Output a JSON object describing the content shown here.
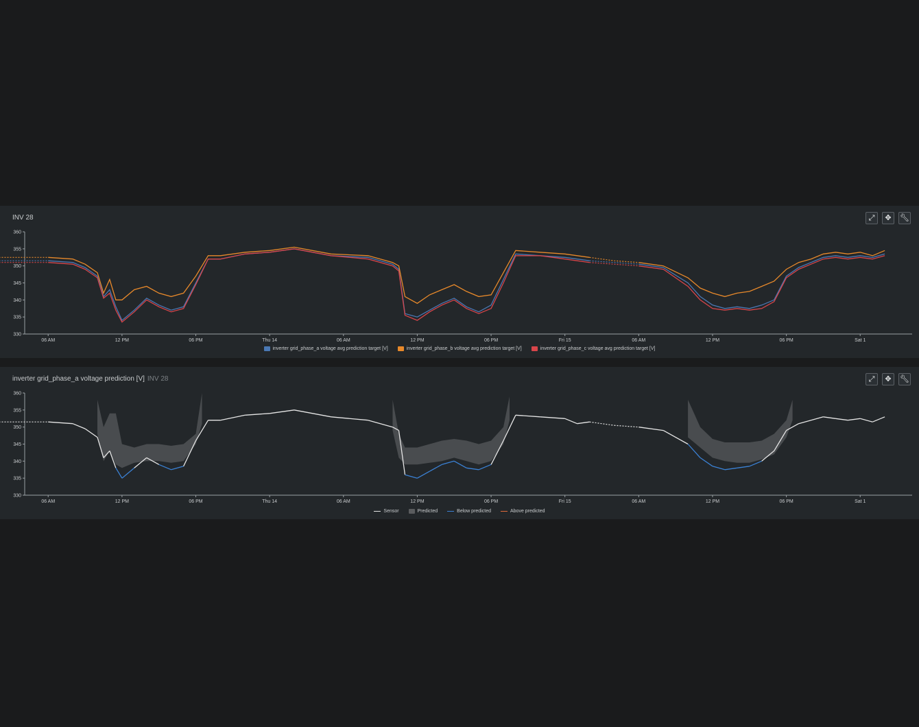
{
  "panels": [
    {
      "title": "INV 28",
      "subtitle": "",
      "tools": [
        "collapse-icon",
        "move-icon",
        "wrench-icon"
      ],
      "legend": [
        {
          "label": "inverter grid_phase_a voltage avg prediction target [V]",
          "color": "#4a78b4"
        },
        {
          "label": "inverter grid_phase_b voltage avg prediction target [V]",
          "color": "#e8892a"
        },
        {
          "label": "inverter grid_phase_c voltage avg prediction target [V]",
          "color": "#d8454a"
        }
      ]
    },
    {
      "title": "inverter grid_phase_a voltage prediction [V]",
      "subtitle": "INV 28",
      "tools": [
        "collapse-icon",
        "move-icon",
        "wrench-icon"
      ],
      "legend": [
        {
          "label": "Sensor",
          "color": "#e6e6e6",
          "kind": "line"
        },
        {
          "label": "Predicted",
          "color": "#5a5c5e",
          "kind": "area"
        },
        {
          "label": "Below predicted",
          "color": "#3b82d6",
          "kind": "line"
        },
        {
          "label": "Above predicted",
          "color": "#e06a3a",
          "kind": "line"
        }
      ]
    }
  ],
  "chart_data": [
    {
      "type": "line",
      "x_ticks": [
        "06 AM",
        "12 PM",
        "06 PM",
        "Thu 14",
        "06 AM",
        "12 PM",
        "06 PM",
        "Fri 15",
        "06 AM",
        "12 PM",
        "06 PM",
        "Sat 1"
      ],
      "x_range_hours": [
        0,
        72
      ],
      "ylim": [
        330,
        360
      ],
      "y_ticks": [
        330,
        335,
        340,
        345,
        350,
        355,
        360
      ],
      "grid": false,
      "legend_position": "bottom",
      "x_hours": [
        0,
        4,
        6,
        7,
        8,
        8.5,
        9,
        9.5,
        10,
        11,
        12,
        13,
        14,
        15,
        16,
        17,
        18,
        20,
        22,
        24,
        27,
        30,
        32,
        32.5,
        33,
        34,
        35,
        36,
        37,
        38,
        39,
        40,
        41,
        42,
        44,
        46,
        47,
        48,
        50,
        52,
        54,
        56,
        57,
        58,
        59,
        60,
        61,
        62,
        63,
        64,
        65,
        66,
        67,
        68,
        69,
        70,
        71,
        72
      ],
      "series": [
        {
          "name": "inverter grid_phase_a voltage avg prediction target [V]",
          "color": "#4a78b4",
          "values": [
            351.5,
            351.5,
            351,
            349.5,
            347,
            341,
            343,
            338,
            334,
            337,
            340.5,
            338.5,
            337,
            338,
            345,
            352,
            352,
            353.5,
            354,
            355,
            353,
            352.5,
            350.5,
            349,
            336,
            335,
            337,
            339,
            340.5,
            338,
            336.5,
            338.5,
            346,
            353.5,
            353,
            352.5,
            352,
            351.5,
            351,
            350.5,
            349.5,
            345,
            341,
            338.5,
            337.5,
            338,
            337.5,
            338.5,
            340,
            347,
            349.5,
            351,
            352.5,
            353,
            352.5,
            353,
            352.5,
            353.5
          ]
        },
        {
          "name": "inverter grid_phase_b voltage avg prediction target [V]",
          "color": "#e8892a",
          "values": [
            352.5,
            352.5,
            352,
            350.5,
            348,
            342,
            346,
            340,
            340,
            343,
            344,
            342,
            341,
            342,
            347,
            353,
            353,
            354,
            354.5,
            355.5,
            353.5,
            353,
            351,
            350,
            341,
            339,
            341.5,
            343,
            344.5,
            342.5,
            341,
            341.5,
            348,
            354.5,
            354,
            353.5,
            353,
            352.5,
            351.5,
            351,
            350,
            346.5,
            343.5,
            342,
            341,
            342,
            342.5,
            344,
            345.5,
            349,
            351,
            352,
            353.5,
            354,
            353.5,
            354,
            353,
            354.5
          ]
        },
        {
          "name": "inverter grid_phase_c voltage avg prediction target [V]",
          "color": "#d8454a",
          "values": [
            351,
            351,
            350.5,
            349,
            346.5,
            340.5,
            342,
            337,
            333.5,
            336.5,
            340,
            338,
            336.5,
            337.5,
            344.5,
            352,
            352,
            353.5,
            354,
            355,
            353,
            352,
            350,
            348.5,
            335.5,
            334,
            336.5,
            338.5,
            340,
            337.5,
            336,
            337.5,
            345,
            353,
            353,
            352,
            351.5,
            351,
            350.5,
            350,
            349,
            344,
            340,
            337.5,
            337,
            337.5,
            337,
            337.5,
            339.5,
            346.5,
            349,
            350.5,
            352,
            352.5,
            352,
            352.5,
            352,
            353
          ]
        }
      ]
    },
    {
      "type": "line",
      "x_ticks": [
        "06 AM",
        "12 PM",
        "06 PM",
        "Thu 14",
        "06 AM",
        "12 PM",
        "06 PM",
        "Fri 15",
        "06 AM",
        "12 PM",
        "06 PM",
        "Sat 1"
      ],
      "x_range_hours": [
        0,
        72
      ],
      "ylim": [
        330,
        360
      ],
      "y_ticks": [
        330,
        335,
        340,
        345,
        350,
        355,
        360
      ],
      "grid": false,
      "legend_position": "bottom",
      "sensor": {
        "x_hours": [
          0,
          4,
          6,
          7,
          8,
          8.5,
          9,
          9.5,
          10,
          11,
          12,
          13,
          14,
          15,
          16,
          17,
          18,
          20,
          22,
          24,
          27,
          30,
          32,
          32.5,
          33,
          34,
          35,
          36,
          37,
          38,
          39,
          40,
          41,
          42,
          44,
          46,
          47,
          48,
          50,
          52,
          54,
          56,
          57,
          58,
          59,
          60,
          61,
          62,
          63,
          64,
          65,
          66,
          67,
          68,
          69,
          70,
          71,
          72
        ],
        "values": [
          351.5,
          351.5,
          351,
          349.5,
          347,
          341,
          343,
          338,
          335,
          338,
          341,
          339,
          337.5,
          338.5,
          346,
          352,
          352,
          353.5,
          354,
          355,
          353,
          352,
          350,
          349,
          336,
          335,
          337,
          339,
          340,
          338,
          337.5,
          339,
          346,
          353.5,
          353,
          352.5,
          351,
          351.5,
          350.5,
          350,
          349,
          345,
          341,
          338.5,
          337.5,
          338,
          338.5,
          340,
          343,
          349,
          351,
          352,
          353,
          352.5,
          352,
          352.5,
          351.5,
          353
        ]
      },
      "predicted": {
        "x_hours": [
          8,
          8.5,
          9,
          9.5,
          10,
          11,
          12,
          13,
          14,
          15,
          16,
          16.5,
          32,
          32.5,
          33,
          34,
          35,
          36,
          37,
          38,
          39,
          40,
          41,
          41.5,
          56,
          57,
          58,
          59,
          60,
          61,
          62,
          63,
          64,
          64.5
        ],
        "upper": [
          358,
          350,
          354,
          354,
          345,
          344,
          345,
          345,
          344.5,
          345,
          348,
          360,
          358,
          348,
          344,
          344,
          345,
          346,
          346.5,
          346,
          345,
          346,
          350,
          359,
          358,
          350,
          346.5,
          345.5,
          345.5,
          345.5,
          346,
          348,
          352,
          358
        ],
        "lower": [
          348,
          340,
          343,
          339,
          338,
          339.5,
          340,
          340,
          339.5,
          340,
          345,
          351,
          349,
          341,
          339,
          339,
          339.5,
          340,
          341,
          340,
          339,
          340,
          345,
          352,
          347,
          344,
          341,
          340,
          339.5,
          339.5,
          340.5,
          342,
          347,
          352
        ]
      }
    }
  ]
}
